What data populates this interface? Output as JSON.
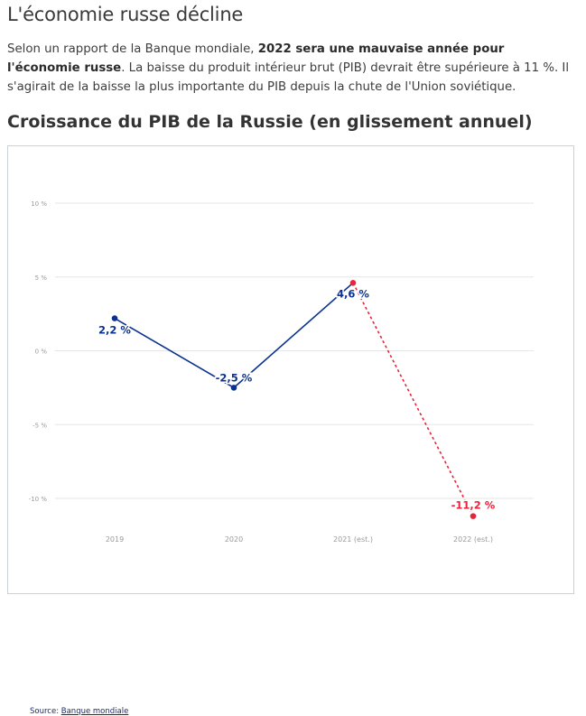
{
  "header": {
    "title": "L'économie russe décline"
  },
  "intro": {
    "text_before": "Selon un rapport de la Banque mondiale, ",
    "bold_text": "2022 sera une mauvaise année pour l'économie russe",
    "text_after": ". La baisse du produit intérieur brut (PIB) devrait être supérieure à 11 %. Il s'agirait de la baisse la plus importante du PIB depuis la chute de l'Union soviétique."
  },
  "chart_heading": "Croissance du PIB de la Russie (en glissement annuel)",
  "source": {
    "prefix": "Source: ",
    "link_label": "Banque mondiale"
  },
  "colors": {
    "actual": "#0a3391",
    "estimate": "#e8243c",
    "grid": "#e6e6e6",
    "tick_text": "#9a9a9a"
  },
  "chart_data": {
    "type": "line",
    "title": "Croissance du PIB de la Russie (en glissement annuel)",
    "categories": [
      "2019",
      "2020",
      "2021 (est.)",
      "2022 (est.)"
    ],
    "yticks": [
      10,
      5,
      0,
      -5,
      -10
    ],
    "ytick_labels": [
      "10 %",
      "5 %",
      "0 %",
      "-5 %",
      "-10 %"
    ],
    "ylim": [
      -12.5,
      12
    ],
    "grid": true,
    "series": [
      {
        "style": "solid",
        "points": [
          {
            "category": "2019",
            "value": 2.2,
            "label": "2,2 %"
          },
          {
            "category": "2020",
            "value": -2.5,
            "label": "-2,5 %"
          },
          {
            "category": "2021 (est.)",
            "value": 4.6,
            "label": "4,6 %"
          }
        ]
      },
      {
        "style": "dashed",
        "points": [
          {
            "category": "2021 (est.)",
            "value": 4.6,
            "label": ""
          },
          {
            "category": "2022 (est.)",
            "value": -11.2,
            "label": "-11,2 %"
          }
        ]
      }
    ]
  }
}
